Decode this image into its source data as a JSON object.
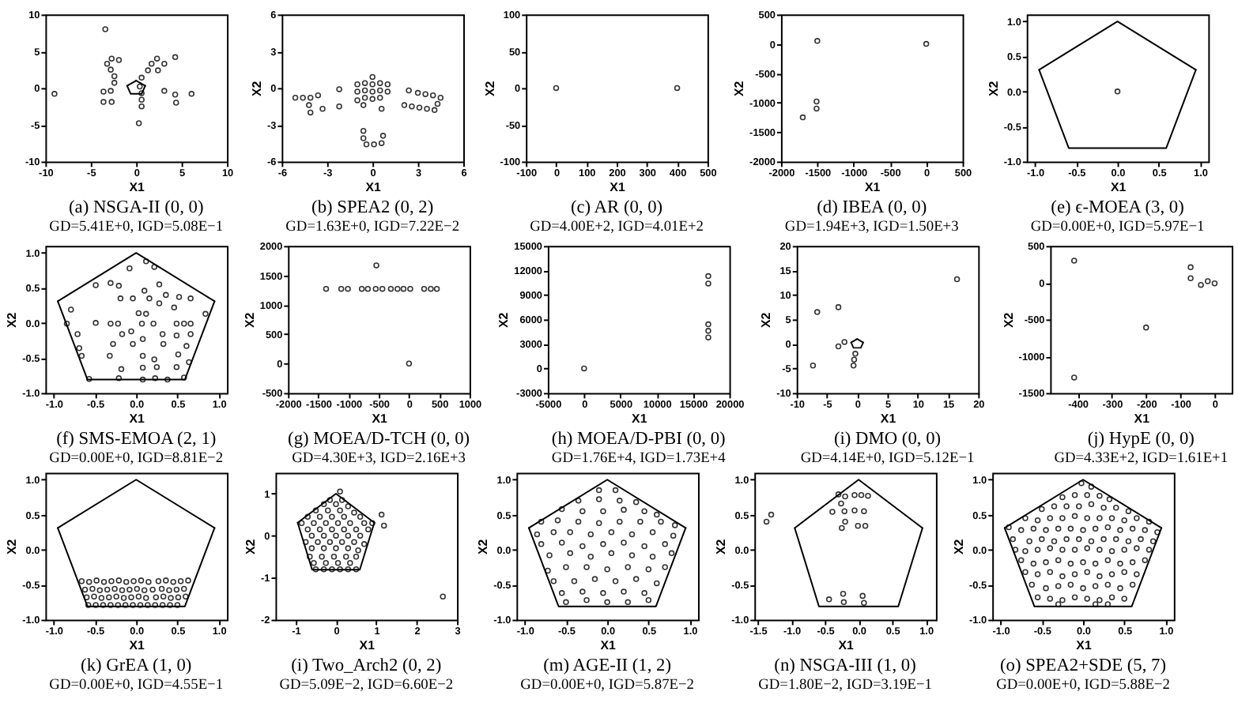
{
  "chart_data": [
    {
      "type": "scatter",
      "title": "(a) NSGA-II (0, 0)",
      "subtitle": "GD=5.41E+0, IGD=5.08E−1",
      "xlabel": "X1",
      "xlim": [
        -10,
        10
      ],
      "ylim": [
        -10,
        10
      ],
      "xticks": [
        -10,
        -5,
        0,
        5,
        10
      ],
      "yticks": [
        -10,
        -5,
        0,
        5,
        10
      ],
      "grid": false,
      "marker": "circle",
      "series": [
        {
          "color": "#333333",
          "x": [
            -3.4,
            -9.0,
            -3.6,
            -3.6,
            -2.7,
            -3.2,
            -2.8,
            -2.4,
            -2.4,
            -2.7,
            -1.9,
            -2.8,
            0.4,
            0.6,
            0.6,
            0.6,
            0.3,
            0.6,
            1.3,
            1.7,
            2.3,
            2.4,
            3.1,
            4.3,
            3.1,
            4.3,
            4.4,
            6.1
          ],
          "values": [
            8.0,
            -0.8,
            -0.5,
            -1.9,
            -1.9,
            3.3,
            2.5,
            1.6,
            0.7,
            4.0,
            3.8,
            -0.4,
            0.2,
            -0.7,
            -1.6,
            -2.5,
            -4.8,
            1.4,
            2.4,
            3.3,
            4.0,
            2.4,
            3.3,
            4.2,
            -0.4,
            -0.9,
            -2.0,
            -0.8
          ]
        },
        {
          "type": "line",
          "marker": "none",
          "color": "#000000",
          "x": [
            -1,
            0
          ],
          "values": [
            0.3,
            1
          ]
        },
        {
          "type": "line",
          "marker": "none",
          "color": "#000000",
          "x": [
            0,
            1
          ],
          "values": [
            1,
            0.3
          ]
        },
        {
          "type": "line",
          "marker": "none",
          "color": "#000000",
          "x": [
            -1,
            -0.6,
            0.6,
            1
          ],
          "values": [
            0.3,
            -0.8,
            -0.8,
            0.3
          ]
        }
      ]
    },
    {
      "type": "scatter",
      "title": "(b) SPEA2 (0, 2)",
      "subtitle": "GD=1.63E+0, IGD=7.22E−2",
      "xlabel": "X1",
      "ylabel": "X2",
      "xlim": [
        -6,
        6
      ],
      "ylim": [
        -6,
        6
      ],
      "xticks": [
        -6,
        -3,
        0,
        3,
        6
      ],
      "yticks": [
        -6,
        -3,
        0,
        3,
        6
      ],
      "grid": false,
      "marker": "circle",
      "series": [
        {
          "color": "#333333",
          "x": [
            -5.1,
            -4.6,
            -4.1,
            -4.2,
            -4.1,
            -3.6,
            -3.3,
            -2.2,
            -2.2,
            -1.0,
            -0.6,
            0.6,
            -0.6,
            -0.6,
            -0.4,
            0.1,
            0.6,
            0.7,
            2.4,
            2.1,
            2.6,
            3.1,
            3.6,
            3.0,
            3.5,
            4.0,
            4.1,
            4.3,
            4.5,
            0,
            -0.5,
            0.5,
            0,
            -1.0,
            1.0,
            -0.5,
            0.5,
            0,
            -1.0,
            1.0,
            -0.5,
            0,
            0.5
          ],
          "values": [
            -0.8,
            -0.8,
            -0.8,
            -1.4,
            -2.0,
            -0.6,
            -1.7,
            -0.1,
            -1.5,
            -1.0,
            -1.4,
            -1.7,
            -3.5,
            -4.1,
            -4.6,
            -4.6,
            -4.5,
            -3.9,
            -0.2,
            -1.4,
            -1.5,
            -1.6,
            -1.7,
            -0.4,
            -0.5,
            -0.6,
            -1.8,
            -1.3,
            -0.8,
            0.9,
            0.4,
            0.4,
            0.3,
            0.3,
            0.3,
            -0.2,
            -0.2,
            -0.3,
            -0.3,
            -0.3,
            -0.8,
            -0.9,
            -0.8
          ]
        }
      ]
    },
    {
      "type": "scatter",
      "title": "(c) AR (0, 0)",
      "subtitle": "GD=4.00E+2, IGD=4.01E+2",
      "xlabel": "X1",
      "ylabel": "X2",
      "xlim": [
        -100,
        500
      ],
      "ylim": [
        -100,
        100
      ],
      "xticks": [
        -100,
        0,
        100,
        200,
        300,
        400,
        500
      ],
      "yticks": [
        -100,
        -50,
        0,
        50,
        100
      ],
      "grid": false,
      "marker": "circle",
      "series": [
        {
          "color": "#333333",
          "x": [
            0,
            400
          ],
          "values": [
            0,
            0
          ]
        }
      ]
    },
    {
      "type": "scatter",
      "title": "(d) IBEA (0, 0)",
      "subtitle": "GD=1.94E+3, IGD=1.50E+3",
      "xlabel": "X1",
      "ylabel": "X2",
      "xlim": [
        -2000,
        500
      ],
      "ylim": [
        -2000,
        500
      ],
      "xticks": [
        -2000,
        -1500,
        -1000,
        -500,
        0,
        500
      ],
      "yticks": [
        -2000,
        -1500,
        -1000,
        -500,
        0,
        500
      ],
      "grid": false,
      "marker": "circle",
      "series": [
        {
          "color": "#333333",
          "x": [
            -1500,
            0,
            -1700,
            -1510,
            -1510
          ],
          "values": [
            50,
            0,
            -1250,
            -980,
            -1100
          ]
        }
      ]
    },
    {
      "type": "scatter",
      "title": "(e) ϵ-MOEA (3, 0)",
      "subtitle": "GD=0.00E+0, IGD=5.97E−1",
      "xlabel": "X1",
      "ylabel": "X2",
      "xlim": [
        -1.1,
        1.1
      ],
      "ylim": [
        -1,
        1.1
      ],
      "xticks": [
        {
          "value": -1,
          "label": "-1.0"
        },
        -0.5,
        {
          "value": 0,
          "label": "0.0"
        },
        0.5,
        {
          "value": 1,
          "label": "1.0"
        }
      ],
      "yticks": [
        {
          "value": -1,
          "label": "-1.0"
        },
        -0.5,
        {
          "value": 0,
          "label": "0.0"
        },
        0.5,
        {
          "value": 1,
          "label": "1.0"
        }
      ],
      "grid": false,
      "marker": "circle",
      "series": [
        {
          "color": "#333333",
          "x": [
            0
          ],
          "values": [
            0
          ]
        },
        {
          "type": "line",
          "marker": "none",
          "color": "#000000",
          "x": [
            -0.95,
            0,
            0.95
          ],
          "values": [
            0.31,
            1,
            0.31
          ]
        },
        {
          "type": "line",
          "marker": "none",
          "color": "#000000",
          "x": [
            -0.95,
            -0.59,
            0.59,
            0.95
          ],
          "values": [
            0.31,
            -0.81,
            -0.81,
            0.31
          ]
        }
      ]
    },
    {
      "type": "scatter",
      "title": "(f) SMS-EMOA (2, 1)",
      "subtitle": "GD=0.00E+0, IGD=8.81E−2",
      "xlabel": "X1",
      "ylabel": "X2",
      "xlim": [
        -1.1,
        1.1
      ],
      "ylim": [
        -1,
        1.1
      ],
      "xticks": [
        {
          "value": -1,
          "label": "-1.0"
        },
        -0.5,
        {
          "value": 0,
          "label": "0.0"
        },
        0.5,
        {
          "value": 1,
          "label": "1.0"
        }
      ],
      "yticks": [
        {
          "value": -1,
          "label": "-1.0"
        },
        -0.5,
        {
          "value": 0,
          "label": "0.0"
        },
        0.5,
        {
          "value": 1,
          "label": "1.0"
        }
      ],
      "grid": false,
      "marker": "circle",
      "series": [
        {
          "color": "#333333",
          "x": [
            -0.79,
            -0.84,
            -0.71,
            -0.69,
            -0.66,
            -0.57,
            -0.49,
            -0.49,
            -0.31,
            -0.31,
            -0.28,
            -0.32,
            -0.22,
            -0.21,
            -0.19,
            -0.18,
            -0.21,
            -0.17,
            -0.08,
            -0.04,
            -0.06,
            -0.04,
            0.03,
            0.07,
            0.08,
            0.08,
            0.08,
            0.08,
            0.1,
            0.12,
            0.16,
            0.12,
            0.21,
            0.22,
            0.23,
            0.25,
            0.22,
            0.28,
            0.28,
            0.32,
            0.33,
            0.36,
            0.46,
            0.52,
            0.49,
            0.49,
            0.51,
            0.49,
            0.38,
            0.58,
            0.61,
            0.66,
            0.66,
            0.66,
            0.64,
            0.58,
            0.84
          ],
          "values": [
            0.19,
            -0.01,
            -0.16,
            -0.36,
            -0.47,
            -0.8,
            0.54,
            0.0,
            0.57,
            -0.01,
            -0.3,
            -0.47,
            -0.01,
            0.53,
            0.35,
            -0.66,
            -0.79,
            -0.16,
            0.78,
            0.35,
            -0.12,
            -0.3,
            0.14,
            -0.01,
            -0.23,
            -0.47,
            -0.64,
            -0.81,
            0.46,
            0.88,
            0.35,
            0.13,
            -0.01,
            -0.52,
            -0.79,
            -0.63,
            0.8,
            0.55,
            0.28,
            -0.16,
            -0.3,
            0.4,
            0.22,
            0.37,
            -0.01,
            -0.18,
            -0.45,
            -0.63,
            -0.81,
            -0.01,
            -0.33,
            -0.01,
            0.35,
            -0.16,
            -0.56,
            -0.78,
            0.13
          ]
        },
        {
          "type": "line",
          "marker": "none",
          "color": "#000000",
          "x": [
            -0.95,
            0,
            0.95
          ],
          "values": [
            0.31,
            1,
            0.31
          ]
        },
        {
          "type": "line",
          "marker": "none",
          "color": "#000000",
          "x": [
            -0.95,
            -0.59,
            0.59,
            0.95
          ],
          "values": [
            0.31,
            -0.81,
            -0.81,
            0.31
          ]
        }
      ]
    },
    {
      "type": "scatter",
      "title": "(g) MOEA/D-TCH (0, 0)",
      "subtitle": "GD=4.30E+3, IGD=2.16E+3",
      "xlabel": "X1",
      "ylabel": "X2",
      "xlim": [
        -2000,
        1000
      ],
      "ylim": [
        -500,
        2000
      ],
      "xticks": [
        -2000,
        -1500,
        -1000,
        -500,
        0,
        500,
        1000
      ],
      "yticks": [
        -500,
        0,
        500,
        1000,
        1500,
        2000
      ],
      "grid": false,
      "marker": "circle",
      "series": [
        {
          "color": "#333333",
          "x": [
            -540,
            -1370,
            -1120,
            -1010,
            -780,
            -680,
            -550,
            -440,
            -300,
            -190,
            -90,
            20,
            250,
            360,
            460,
            0
          ],
          "values": [
            1670,
            1270,
            1270,
            1270,
            1270,
            1270,
            1270,
            1270,
            1270,
            1270,
            1270,
            1270,
            1270,
            1270,
            1270,
            0
          ]
        }
      ]
    },
    {
      "type": "scatter",
      "title": "(h) MOEA/D-PBI (0, 0)",
      "subtitle": "GD=1.76E+4, IGD=1.73E+4",
      "xlabel": "X1",
      "ylabel": "X2",
      "xlim": [
        -5000,
        20000
      ],
      "ylim": [
        -3000,
        15000
      ],
      "xticks": [
        -5000,
        0,
        5000,
        10000,
        15000,
        20000
      ],
      "yticks": [
        -3000,
        0,
        3000,
        6000,
        9000,
        12000,
        15000
      ],
      "grid": false,
      "marker": "circle",
      "series": [
        {
          "color": "#333333",
          "x": [
            0,
            17100,
            17100,
            17100,
            17100,
            17100
          ],
          "values": [
            0,
            11300,
            10400,
            5400,
            4600,
            3800
          ]
        }
      ]
    },
    {
      "type": "scatter",
      "title": "(i) DMO (0, 0)",
      "subtitle": "GD=4.14E+0, IGD=5.12E−1",
      "xlabel": "X1",
      "ylabel": "X2",
      "xlim": [
        -10,
        20
      ],
      "ylim": [
        -10,
        20
      ],
      "xticks": [
        -10,
        -5,
        0,
        5,
        10,
        15,
        20
      ],
      "yticks": [
        -10,
        -5,
        0,
        5,
        10,
        15,
        20
      ],
      "grid": false,
      "marker": "circle",
      "series": [
        {
          "color": "#333333",
          "x": [
            16.5,
            -6.6,
            -3.1,
            -3.1,
            -7.3,
            -2.1,
            -0.3,
            -0.5,
            -0.6
          ],
          "values": [
            13.2,
            6.5,
            7.5,
            -0.5,
            -4.4,
            0.4,
            -2.0,
            -3.2,
            -4.4
          ]
        },
        {
          "type": "line",
          "marker": "none",
          "color": "#000000",
          "x": [
            -1,
            0
          ],
          "values": [
            0.3,
            1
          ]
        },
        {
          "type": "line",
          "marker": "none",
          "color": "#080808",
          "x": [
            0,
            1
          ],
          "values": [
            1,
            0.3
          ]
        },
        {
          "type": "line",
          "marker": "none",
          "color": "#101010",
          "x": [
            -1,
            -0.6,
            0.6,
            1
          ],
          "values": [
            0.3,
            -0.8,
            -0.8,
            0.3
          ]
        }
      ]
    },
    {
      "type": "scatter",
      "title": "(j) HypE (0, 0)",
      "subtitle": "GD=4.33E+2, IGD=1.61E+1",
      "xlabel": "X1",
      "ylabel": "X2",
      "xlim": [
        -480,
        50
      ],
      "ylim": [
        -1500,
        500
      ],
      "xticks": [
        -400,
        -300,
        -200,
        -100,
        0
      ],
      "yticks": [
        -1500,
        -1000,
        -500,
        0,
        500
      ],
      "grid": false,
      "marker": "circle",
      "series": [
        {
          "color": "#333333",
          "x": [
            -410,
            -410,
            -200,
            -70,
            -70,
            -40,
            -20,
            0
          ],
          "values": [
            300,
            -1290,
            -610,
            210,
            60,
            -30,
            20,
            -10
          ]
        }
      ]
    },
    {
      "type": "scatter",
      "title": "(k) GrEA (1, 0)",
      "subtitle": "GD=0.00E+0, IGD=4.55E−1",
      "xlabel": "X1",
      "ylabel": "X2",
      "xlim": [
        -1.1,
        1.1
      ],
      "ylim": [
        -1,
        1.1
      ],
      "xticks": [
        {
          "value": -1,
          "label": "-1.0"
        },
        -0.5,
        {
          "value": 0,
          "label": "0.0"
        },
        0.5,
        {
          "value": 1,
          "label": "1.0"
        }
      ],
      "yticks": [
        {
          "value": -1,
          "label": "-1.0"
        },
        -0.5,
        {
          "value": 0,
          "label": "0.0"
        },
        0.5,
        {
          "value": 1,
          "label": "1.0"
        }
      ],
      "grid": false,
      "marker": "circle",
      "series": [
        {
          "color": "#333333",
          "x": [
            -0.66,
            -0.57,
            -0.48,
            -0.39,
            -0.3,
            -0.21,
            -0.12,
            -0.03,
            0.06,
            0.15,
            0.27,
            0.36,
            0.45,
            0.54,
            0.63,
            -0.62,
            -0.53,
            -0.44,
            -0.35,
            -0.26,
            -0.17,
            -0.08,
            0.01,
            0.1,
            0.2,
            0.31,
            0.4,
            0.49,
            0.58,
            -0.6,
            -0.51,
            -0.42,
            -0.33,
            -0.24,
            -0.15,
            -0.06,
            0.03,
            0.12,
            0.24,
            0.33,
            0.42,
            0.51,
            0.6,
            -0.58,
            -0.49,
            -0.4,
            -0.31,
            -0.22,
            -0.13,
            -0.04,
            0.05,
            0.14,
            0.23,
            0.32,
            0.41,
            0.5
          ],
          "values": [
            -0.45,
            -0.46,
            -0.44,
            -0.46,
            -0.45,
            -0.44,
            -0.46,
            -0.45,
            -0.44,
            -0.46,
            -0.45,
            -0.44,
            -0.46,
            -0.45,
            -0.44,
            -0.57,
            -0.56,
            -0.58,
            -0.57,
            -0.56,
            -0.58,
            -0.57,
            -0.56,
            -0.58,
            -0.57,
            -0.56,
            -0.58,
            -0.57,
            -0.56,
            -0.68,
            -0.67,
            -0.69,
            -0.68,
            -0.67,
            -0.69,
            -0.68,
            -0.67,
            -0.69,
            -0.68,
            -0.67,
            -0.69,
            -0.68,
            -0.67,
            -0.79,
            -0.79,
            -0.79,
            -0.79,
            -0.79,
            -0.79,
            -0.79,
            -0.79,
            -0.79,
            -0.79,
            -0.79,
            -0.79,
            -0.79
          ]
        },
        {
          "type": "line",
          "marker": "none",
          "color": "#000000",
          "x": [
            -0.95,
            0,
            0.95
          ],
          "values": [
            0.31,
            1,
            0.31
          ]
        },
        {
          "type": "line",
          "marker": "none",
          "color": "#000000",
          "x": [
            -0.95,
            -0.59,
            0.59,
            0.95
          ],
          "values": [
            0.31,
            -0.81,
            -0.81,
            0.31
          ]
        }
      ]
    },
    {
      "type": "scatter",
      "title": "(i) Two_Arch2 (0, 2)",
      "subtitle": "GD=5.09E−2, IGD=6.60E−2",
      "xlabel": "X1",
      "ylabel": "X2",
      "xlim": [
        -1.5,
        3
      ],
      "ylim": [
        -2,
        1.5
      ],
      "xticks": [
        -1,
        0,
        1,
        2,
        3
      ],
      "yticks": [
        -2,
        -1,
        0,
        1
      ],
      "grid": false,
      "marker": "circle",
      "series": [
        {
          "color": "#333333",
          "x": [
            0.1,
            -0.15,
            0.15,
            -0.3,
            0,
            0.3,
            -0.5,
            -0.2,
            0.1,
            0.45,
            -0.7,
            -0.4,
            -0.1,
            0.2,
            0.6,
            -0.85,
            -0.55,
            -0.25,
            0.05,
            0.35,
            0.7,
            0.9,
            -0.7,
            -0.4,
            -0.1,
            0.2,
            0.5,
            0.8,
            -0.6,
            -0.3,
            0,
            0.3,
            0.6,
            -0.75,
            -0.45,
            -0.15,
            0.15,
            0.45,
            0.7,
            -0.6,
            -0.3,
            0,
            0.3,
            0.55,
            -0.65,
            -0.35,
            -0.05,
            0.25,
            0.5,
            -0.55,
            -0.25,
            0.05,
            0.35,
            -0.5,
            -0.3,
            -0.1,
            0.1,
            0.3,
            0.5,
            2.65,
            1.13,
            1.19
          ],
          "values": [
            1.05,
            0.85,
            0.85,
            0.75,
            0.75,
            0.7,
            0.6,
            0.6,
            0.6,
            0.55,
            0.45,
            0.45,
            0.45,
            0.45,
            0.45,
            0.3,
            0.3,
            0.3,
            0.3,
            0.3,
            0.3,
            0.3,
            0.15,
            0.15,
            0.15,
            0.15,
            0.15,
            0.15,
            0,
            0,
            0,
            0,
            0,
            -0.15,
            -0.15,
            -0.15,
            -0.15,
            -0.15,
            -0.2,
            -0.3,
            -0.3,
            -0.3,
            -0.3,
            -0.35,
            -0.5,
            -0.5,
            -0.5,
            -0.5,
            -0.5,
            -0.65,
            -0.65,
            -0.65,
            -0.65,
            -0.8,
            -0.8,
            -0.8,
            -0.8,
            -0.8,
            -0.8,
            -1.45,
            0.5,
            0.24
          ]
        },
        {
          "type": "line",
          "marker": "none",
          "color": "#000000",
          "x": [
            -0.95,
            0,
            0.95
          ],
          "values": [
            0.31,
            1,
            0.31
          ]
        },
        {
          "type": "line",
          "marker": "none",
          "color": "#000000",
          "x": [
            -0.95,
            -0.59,
            0.59,
            0.95
          ],
          "values": [
            0.31,
            -0.81,
            -0.81,
            0.31
          ]
        }
      ]
    },
    {
      "type": "scatter",
      "title": "(m) AGE-II (1, 2)",
      "subtitle": "GD=0.00E+0, IGD=5.87E−2",
      "xlabel": "X1",
      "ylabel": "X2",
      "xlim": [
        -1.1,
        1.1
      ],
      "ylim": [
        -1,
        1.1
      ],
      "xticks": [
        {
          "value": -1,
          "label": "-1.0"
        },
        -0.5,
        {
          "value": 0,
          "label": "0.0"
        },
        0.5,
        {
          "value": 1,
          "label": "1.0"
        }
      ],
      "yticks": [
        {
          "value": -1,
          "label": "-1.0"
        },
        -0.5,
        {
          "value": 0,
          "label": "0.0"
        },
        0.5,
        {
          "value": 1,
          "label": "1.0"
        }
      ],
      "grid": false,
      "marker": "circle",
      "series": [
        {
          "color": "#333333",
          "x": [
            -0.1,
            0.1,
            -0.35,
            -0.1,
            0.15,
            0.35,
            -0.55,
            -0.3,
            -0.05,
            0.2,
            0.45,
            0.6,
            -0.8,
            -0.6,
            -0.35,
            -0.1,
            0.15,
            0.4,
            0.65,
            0.82,
            -0.85,
            -0.65,
            -0.45,
            -0.2,
            0.05,
            0.3,
            0.55,
            0.8,
            -0.8,
            -0.55,
            -0.3,
            -0.05,
            0.2,
            0.45,
            0.7,
            -0.7,
            -0.45,
            -0.2,
            0.05,
            0.3,
            0.55,
            0.78,
            -0.72,
            -0.5,
            -0.25,
            0,
            0.25,
            0.5,
            0.7,
            -0.65,
            -0.4,
            -0.15,
            0.1,
            0.35,
            0.6,
            -0.55,
            -0.3,
            -0.05,
            0.2,
            0.45,
            -0.5,
            -0.25,
            0,
            0.25,
            0.5
          ],
          "values": [
            0.85,
            0.85,
            0.7,
            0.72,
            0.7,
            0.68,
            0.58,
            0.55,
            0.55,
            0.57,
            0.55,
            0.5,
            0.4,
            0.42,
            0.4,
            0.38,
            0.4,
            0.4,
            0.4,
            0.35,
            0.22,
            0.25,
            0.25,
            0.22,
            0.25,
            0.22,
            0.25,
            0.2,
            0.08,
            0.1,
            0.05,
            0.08,
            0.1,
            0.05,
            0.08,
            -0.08,
            -0.05,
            -0.1,
            -0.05,
            -0.08,
            -0.1,
            -0.05,
            -0.3,
            -0.25,
            -0.25,
            -0.28,
            -0.25,
            -0.28,
            -0.25,
            -0.45,
            -0.45,
            -0.42,
            -0.45,
            -0.42,
            -0.48,
            -0.62,
            -0.6,
            -0.62,
            -0.6,
            -0.62,
            -0.75,
            -0.72,
            -0.75,
            -0.75,
            -0.72
          ]
        },
        {
          "type": "line",
          "marker": "none",
          "color": "#000000",
          "x": [
            -0.95,
            0,
            0.95
          ],
          "values": [
            0.31,
            1,
            0.31
          ]
        },
        {
          "type": "line",
          "marker": "none",
          "color": "#000000",
          "x": [
            -0.95,
            -0.59,
            0.59,
            0.95
          ],
          "values": [
            0.31,
            -0.81,
            -0.81,
            0.31
          ]
        }
      ]
    },
    {
      "type": "scatter",
      "title": "(n) NSGA-III (1, 0)",
      "subtitle": "GD=1.80E−2, IGD=3.19E−1",
      "xlabel": "X1",
      "ylabel": "X2",
      "xlim": [
        -1.55,
        1.15
      ],
      "ylim": [
        -1,
        1.1
      ],
      "xticks": [
        -1.5,
        {
          "value": -1,
          "label": "-1.0"
        },
        -0.5,
        {
          "value": 0,
          "label": "0.0"
        },
        0.5,
        {
          "value": 1,
          "label": "1.0"
        }
      ],
      "yticks": [
        {
          "value": -1,
          "label": "-1.0"
        },
        -0.5,
        {
          "value": 0,
          "label": "0.0"
        },
        0.5,
        {
          "value": 1,
          "label": "1.0"
        }
      ],
      "grid": false,
      "marker": "circle",
      "series": [
        {
          "color": "#333333",
          "x": [
            -1.37,
            -1.3,
            -0.3,
            -0.2,
            -0.26,
            -0.21,
            -0.39,
            -0.25,
            -0.2,
            -0.06,
            0.04,
            0.14,
            -0.06,
            0.08,
            -0.01,
            0.1,
            -0.44,
            -0.23,
            -0.22,
            0.06,
            0.08
          ],
          "values": [
            0.4,
            0.5,
            0.79,
            0.76,
            0.66,
            0.55,
            0.54,
            0.31,
            0.4,
            0.78,
            0.78,
            0.77,
            0.56,
            0.55,
            0.34,
            0.34,
            -0.71,
            -0.63,
            -0.75,
            -0.66,
            -0.76
          ]
        },
        {
          "type": "line",
          "marker": "none",
          "color": "#000000",
          "x": [
            -0.95,
            0,
            0.95
          ],
          "values": [
            0.31,
            1,
            0.31
          ]
        },
        {
          "type": "line",
          "marker": "none",
          "color": "#000000",
          "x": [
            -0.95,
            -0.59,
            0.59,
            0.95
          ],
          "values": [
            0.31,
            -0.81,
            -0.81,
            0.31
          ]
        }
      ]
    },
    {
      "type": "scatter",
      "title": "(o) SPEA2+SDE (5, 7)",
      "subtitle": "GD=0.00E+0, IGD=5.88E−2",
      "xlabel": "X1",
      "ylabel": "X2",
      "xlim": [
        -1.1,
        1.1
      ],
      "ylim": [
        -1,
        1.1
      ],
      "xticks": [
        {
          "value": -1,
          "label": "-1.0"
        },
        -0.5,
        {
          "value": 0,
          "label": "0.0"
        },
        0.5,
        {
          "value": 1,
          "label": "1.0"
        }
      ],
      "yticks": [
        {
          "value": -1,
          "label": "-1.0"
        },
        -0.5,
        {
          "value": 0,
          "label": "0.0"
        },
        0.5,
        {
          "value": 1,
          "label": "1.0"
        }
      ],
      "grid": false,
      "marker": "circle",
      "series": [
        {
          "color": "#333333",
          "x": [
            -0.02,
            0.1,
            -0.25,
            -0.1,
            0.05,
            0.2,
            0.32,
            -0.5,
            -0.35,
            -0.2,
            -0.05,
            0.1,
            0.25,
            0.4,
            0.55,
            -0.7,
            -0.55,
            -0.4,
            -0.25,
            -0.1,
            0.05,
            0.2,
            0.35,
            0.5,
            0.65,
            0.8,
            -0.9,
            -0.75,
            -0.6,
            -0.45,
            -0.3,
            -0.15,
            0,
            0.15,
            0.3,
            0.45,
            0.6,
            0.75,
            0.9,
            -0.85,
            -0.65,
            -0.5,
            -0.35,
            -0.2,
            -0.05,
            0.1,
            0.25,
            0.4,
            0.55,
            0.7,
            0.85,
            -0.82,
            -0.7,
            -0.55,
            -0.4,
            -0.25,
            -0.1,
            0.05,
            0.2,
            0.35,
            0.5,
            0.65,
            0.8,
            -0.75,
            -0.6,
            -0.45,
            -0.3,
            -0.15,
            0,
            0.15,
            0.3,
            0.45,
            0.6,
            0.75,
            -0.7,
            -0.55,
            -0.4,
            -0.25,
            -0.1,
            0.05,
            0.2,
            0.35,
            0.5,
            0.65,
            -0.62,
            -0.45,
            -0.3,
            -0.15,
            0,
            0.15,
            0.3,
            0.45,
            0.6,
            -0.55,
            -0.4,
            -0.25,
            -0.1,
            0.05,
            0.2,
            0.35,
            0.5,
            -0.3,
            0.15,
            0.3
          ],
          "values": [
            0.95,
            0.9,
            0.75,
            0.78,
            0.78,
            0.77,
            0.72,
            0.58,
            0.62,
            0.62,
            0.62,
            0.65,
            0.6,
            0.6,
            0.55,
            0.45,
            0.42,
            0.45,
            0.45,
            0.48,
            0.45,
            0.45,
            0.45,
            0.42,
            0.45,
            0.4,
            0.32,
            0.28,
            0.3,
            0.28,
            0.3,
            0.3,
            0.28,
            0.3,
            0.32,
            0.28,
            0.3,
            0.28,
            0.25,
            0.15,
            0.12,
            0.15,
            0.12,
            0.15,
            0.15,
            0.12,
            0.15,
            0.15,
            0.12,
            0.15,
            0.12,
            0,
            -0.02,
            0,
            0.02,
            0,
            0,
            0.02,
            0,
            -0.02,
            0,
            0.02,
            0,
            -0.15,
            -0.2,
            -0.18,
            -0.15,
            -0.2,
            -0.18,
            -0.2,
            -0.15,
            -0.2,
            -0.18,
            -0.15,
            -0.32,
            -0.35,
            -0.32,
            -0.38,
            -0.35,
            -0.32,
            -0.38,
            -0.35,
            -0.32,
            -0.35,
            -0.5,
            -0.55,
            -0.52,
            -0.5,
            -0.55,
            -0.52,
            -0.5,
            -0.55,
            -0.5,
            -0.68,
            -0.7,
            -0.72,
            -0.68,
            -0.7,
            -0.72,
            -0.68,
            -0.7,
            -0.78,
            -0.78,
            -0.78
          ]
        },
        {
          "type": "line",
          "marker": "none",
          "color": "#000000",
          "x": [
            -0.95,
            0,
            0.95
          ],
          "values": [
            0.31,
            1,
            0.31
          ]
        },
        {
          "type": "line",
          "marker": "none",
          "color": "#000000",
          "x": [
            -0.95,
            -0.59,
            0.59,
            0.95
          ],
          "values": [
            0.31,
            -0.81,
            -0.81,
            0.31
          ]
        }
      ]
    }
  ]
}
